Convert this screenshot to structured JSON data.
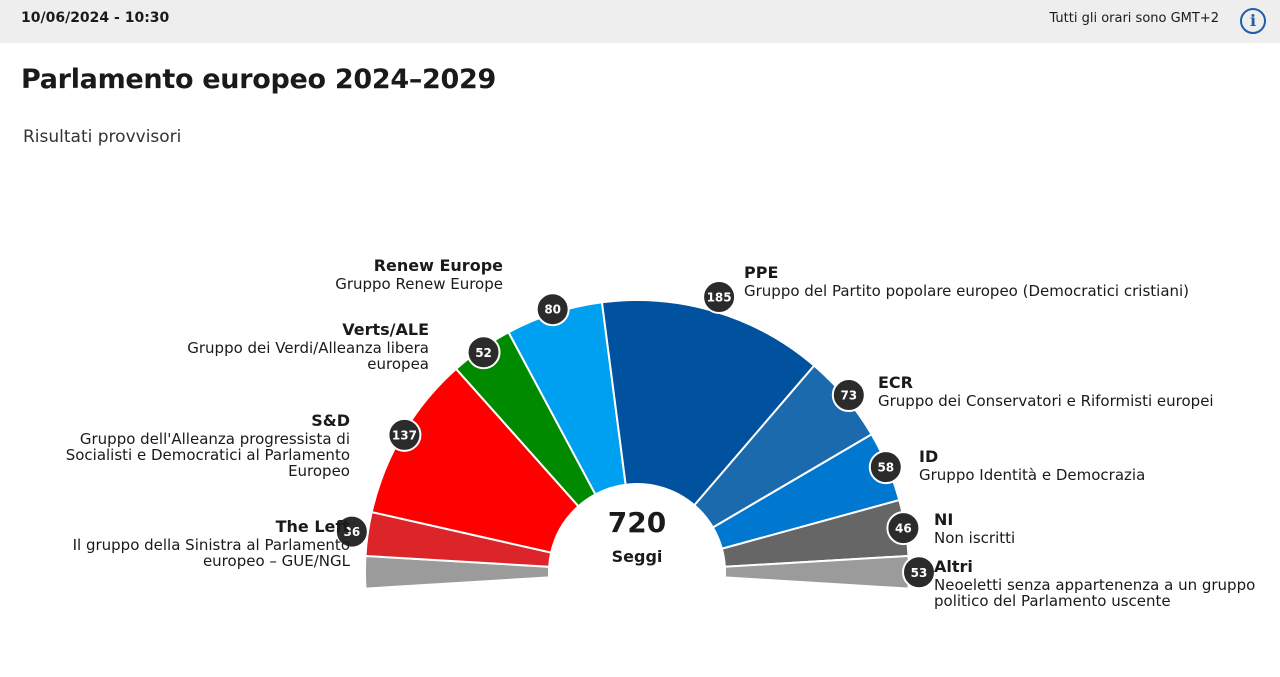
{
  "header": {
    "datetime": "10/06/2024 - 10:30",
    "timezone_note": "Tutti gli orari sono GMT+2",
    "info_icon": "info-icon"
  },
  "title": "Parlamento europeo 2024–2029",
  "subtitle": "Risultati provvisori",
  "chart_data": {
    "type": "pie",
    "variant": "half-donut-parliament",
    "title": "Parlamento europeo 2024–2029",
    "total": 720,
    "total_label": "720",
    "center_label": "Seggi",
    "series": [
      {
        "id": "altri-l",
        "name": "",
        "value": 26.5,
        "color": "#9b9b9b",
        "badge": false
      },
      {
        "id": "left",
        "name": "The Left",
        "description": "Il gruppo della Sinistra al Parlamento europeo – GUE/NGL",
        "value": 36,
        "color": "#dc2528",
        "badge": true
      },
      {
        "id": "sd",
        "name": "S&D",
        "description": "Gruppo dell'Alleanza progressista di Socialisti e Democratici al Parlamento Europeo",
        "value": 137,
        "color": "#ff0000",
        "badge": true
      },
      {
        "id": "verts",
        "name": "Verts/ALE",
        "description": "Gruppo dei Verdi/Alleanza libera europea",
        "value": 52,
        "color": "#008a00",
        "badge": true
      },
      {
        "id": "renew",
        "name": "Renew Europe",
        "description": "Gruppo Renew Europe",
        "value": 80,
        "color": "#00a0f0",
        "badge": true
      },
      {
        "id": "ppe",
        "name": "PPE",
        "description": "Gruppo del Partito popolare europeo (Democratici cristiani)",
        "value": 185,
        "color": "#00519e",
        "badge": true
      },
      {
        "id": "ecr",
        "name": "ECR",
        "description": "Gruppo dei Conservatori e Riformisti europei",
        "value": 73,
        "color": "#1b6aae",
        "badge": true
      },
      {
        "id": "id",
        "name": "ID",
        "description": "Gruppo Identità e Democrazia",
        "value": 58,
        "color": "#0078d0",
        "badge": true
      },
      {
        "id": "ni",
        "name": "NI",
        "description": "Non iscritti",
        "value": 46,
        "color": "#666666",
        "badge": true
      },
      {
        "id": "altri",
        "name": "Altri",
        "description": "Neoeletti senza appartenenza a un gruppo politico del Parlamento uscente",
        "value": 26.5,
        "color": "#9b9b9b",
        "badge": true,
        "badge_value": 53
      }
    ]
  }
}
